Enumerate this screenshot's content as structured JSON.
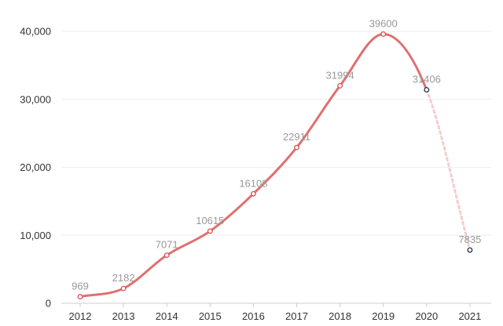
{
  "chart_data": {
    "type": "line",
    "title": "",
    "xlabel": "",
    "ylabel": "",
    "categories": [
      "2012",
      "2013",
      "2014",
      "2015",
      "2016",
      "2017",
      "2018",
      "2019",
      "2020",
      "2021"
    ],
    "series": [
      {
        "values": [
          969,
          2182,
          7071,
          10615,
          16108,
          22911,
          31994,
          39600,
          31406,
          7835
        ],
        "data_labels": [
          "969",
          "2182",
          "7071",
          "10615",
          "16108",
          "22911",
          "31994",
          "39600",
          "31406",
          "7835"
        ],
        "projected_from_index": 8
      }
    ],
    "y_ticks": [
      0,
      10000,
      20000,
      30000,
      40000
    ],
    "y_tick_labels": [
      "0",
      "10,000",
      "20,000",
      "30,000",
      "40,000"
    ],
    "ylim": [
      0,
      40000
    ],
    "grid": true,
    "legend": "none",
    "colors": {
      "line": "#e06f6f",
      "projected_line": "#f5cccc",
      "marker_fill": "#ffffff",
      "marker_stroke_actual": "#d9534f",
      "marker_stroke_projected": "#1f2d4d",
      "grid": "#eeeeee",
      "axis": "#cccccc"
    }
  }
}
